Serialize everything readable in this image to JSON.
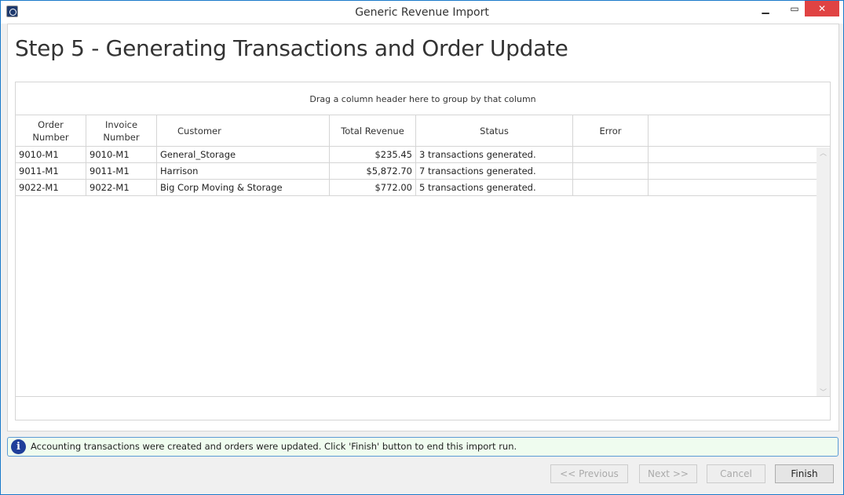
{
  "window": {
    "title": "Generic Revenue Import",
    "minimize": "▁",
    "maximize": "▭",
    "close": "✕"
  },
  "page_title": "Step 5 - Generating Transactions and Order Update",
  "grid": {
    "group_hint": "Drag a column header here to group by that column",
    "columns": [
      "Order Number",
      "Invoice Number",
      "Customer",
      "Total Revenue",
      "Status",
      "Error",
      ""
    ],
    "rows": [
      [
        "9010-M1",
        "9010-M1",
        "General_Storage",
        "$235.45",
        "3 transactions generated.",
        ""
      ],
      [
        "9011-M1",
        "9011-M1",
        "Harrison",
        "$5,872.70",
        "7 transactions generated.",
        ""
      ],
      [
        "9022-M1",
        "9022-M1",
        "Big Corp Moving & Storage",
        "$772.00",
        "5 transactions generated.",
        ""
      ]
    ]
  },
  "status": {
    "icon": "info-icon",
    "message": "Accounting transactions were created and orders were updated.  Click 'Finish' button to end this import run."
  },
  "buttons": {
    "previous": "<< Previous",
    "next": "Next >>",
    "cancel": "Cancel",
    "finish": "Finish"
  }
}
